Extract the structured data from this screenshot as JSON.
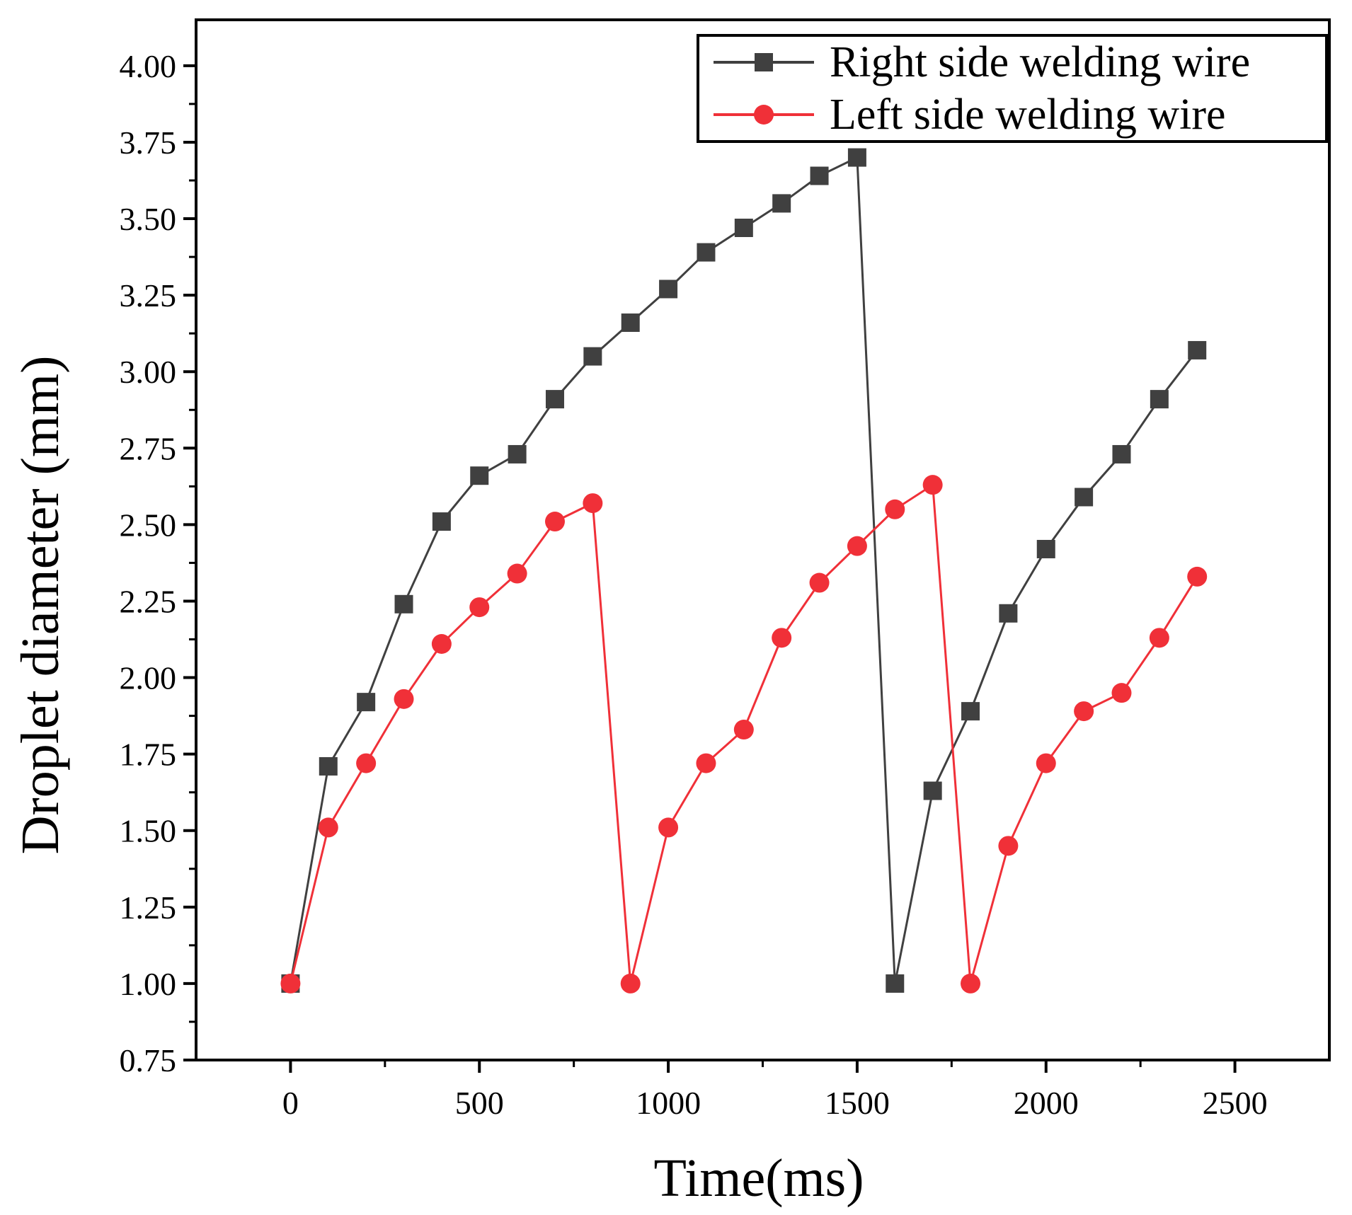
{
  "chart_data": {
    "type": "line",
    "title": "",
    "xlabel": "Time(ms)",
    "ylabel": "Droplet diameter (mm)",
    "xlim": [
      -250,
      2750
    ],
    "ylim": [
      0.75,
      4.15
    ],
    "xticks": [
      0,
      500,
      1000,
      1500,
      2000,
      2500
    ],
    "xtick_labels": [
      "0",
      "500",
      "1000",
      "1500",
      "2000",
      "2500"
    ],
    "yticks": [
      0.75,
      1.0,
      1.25,
      1.5,
      1.75,
      2.0,
      2.25,
      2.5,
      2.75,
      3.0,
      3.25,
      3.5,
      3.75,
      4.0
    ],
    "ytick_labels": [
      "0.75",
      "1.00",
      "1.25",
      "1.50",
      "1.75",
      "2.00",
      "2.25",
      "2.50",
      "2.75",
      "3.00",
      "3.25",
      "3.50",
      "3.75",
      "4.00"
    ],
    "grid": false,
    "legend_position": "top-right",
    "x": [
      0,
      100,
      200,
      300,
      400,
      500,
      600,
      700,
      800,
      900,
      1000,
      1100,
      1200,
      1300,
      1400,
      1500,
      1600,
      1700,
      1800,
      1900,
      2000,
      2100,
      2200,
      2300,
      2400
    ],
    "series": [
      {
        "name": "Right side welding wire",
        "color": "#404040",
        "marker": "square",
        "values": [
          1.0,
          1.71,
          1.92,
          2.24,
          2.51,
          2.66,
          2.73,
          2.91,
          3.05,
          3.16,
          3.27,
          3.39,
          3.47,
          3.55,
          3.64,
          3.7,
          1.0,
          1.63,
          1.89,
          2.21,
          2.42,
          2.59,
          2.73,
          2.91,
          3.07
        ]
      },
      {
        "name": "Left side welding wire",
        "color": "#f03038",
        "marker": "circle",
        "values": [
          1.0,
          1.51,
          1.72,
          1.93,
          2.11,
          2.23,
          2.34,
          2.51,
          2.57,
          1.0,
          1.51,
          1.72,
          1.83,
          2.13,
          2.31,
          2.43,
          2.55,
          2.63,
          1.0,
          1.45,
          1.72,
          1.89,
          1.95,
          2.13,
          2.33
        ]
      }
    ]
  }
}
